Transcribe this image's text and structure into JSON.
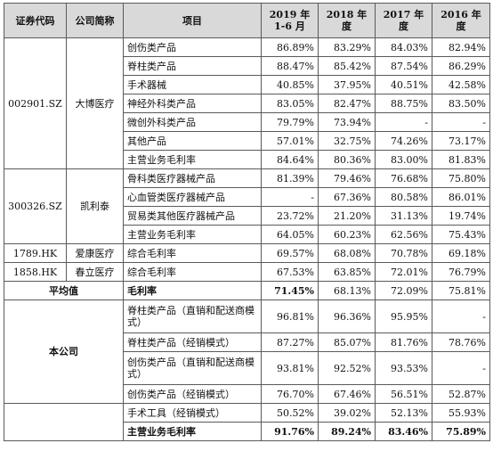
{
  "headers": [
    "证券代码",
    "公司简称",
    "项目",
    "2019 年\n1-6 月",
    "2018 年度",
    "2017 年度",
    "2016 年度"
  ],
  "companies": [
    {
      "code": "002901.SZ",
      "name": "大博医疗",
      "rows": [
        {
          "item": "创伤类产品",
          "values": [
            "86.89%",
            "83.29%",
            "84.03%",
            "82.94%"
          ]
        },
        {
          "item": "脊柱类产品",
          "values": [
            "88.47%",
            "85.42%",
            "87.54%",
            "86.29%"
          ]
        },
        {
          "item": "手术器械",
          "values": [
            "40.85%",
            "37.95%",
            "40.51%",
            "42.58%"
          ]
        },
        {
          "item": "神经外科类产品",
          "values": [
            "83.05%",
            "82.47%",
            "88.75%",
            "83.50%"
          ]
        },
        {
          "item": "微创外科类产品",
          "values": [
            "79.79%",
            "73.94%",
            "-",
            "-"
          ]
        },
        {
          "item": "其他产品",
          "values": [
            "57.01%",
            "32.75%",
            "74.26%",
            "73.17%"
          ]
        },
        {
          "item": "主营业务毛利率",
          "values": [
            "84.64%",
            "80.36%",
            "83.00%",
            "81.83%"
          ]
        }
      ]
    },
    {
      "code": "300326.SZ",
      "name": "凯利泰",
      "rows": [
        {
          "item": "骨科类医疗器械产品",
          "values": [
            "81.39%",
            "79.46%",
            "76.68%",
            "75.80%"
          ]
        },
        {
          "item": "心血管类医疗器械产品",
          "values": [
            "-",
            "67.36%",
            "80.58%",
            "86.01%"
          ]
        },
        {
          "item": "贸易类其他医疗器械产品",
          "values": [
            "23.72%",
            "21.20%",
            "31.13%",
            "19.74%"
          ]
        },
        {
          "item": "主营业务毛利率",
          "values": [
            "64.05%",
            "60.23%",
            "62.56%",
            "75.43%"
          ]
        }
      ]
    },
    {
      "code": "1789.HK",
      "name": "爱康医疗",
      "rows": [
        {
          "item": "综合毛利率",
          "values": [
            "69.57%",
            "68.08%",
            "70.78%",
            "69.18%"
          ]
        }
      ]
    },
    {
      "code": "1858.HK",
      "name": "春立医疗",
      "rows": [
        {
          "item": "综合毛利率",
          "values": [
            "67.53%",
            "63.85%",
            "72.01%",
            "76.79%"
          ]
        }
      ]
    }
  ],
  "average": {
    "label": "平均值",
    "item": "毛利率",
    "values": [
      "71.45%",
      "68.13%",
      "72.09%",
      "75.81%"
    ]
  },
  "company": {
    "label": "本公司",
    "rows": [
      {
        "item": "脊柱类产品（直销和配送商模式）",
        "values": [
          "96.81%",
          "96.36%",
          "95.95%",
          "-"
        ]
      },
      {
        "item": "脊柱类产品（经销模式）",
        "values": [
          "87.27%",
          "85.07%",
          "81.76%",
          "78.76%"
        ]
      },
      {
        "item": "创伤类产品（直销和配送商模式）",
        "values": [
          "93.81%",
          "92.52%",
          "93.53%",
          "-"
        ]
      },
      {
        "item": "创伤类产品（经销模式）",
        "values": [
          "76.70%",
          "67.46%",
          "56.51%",
          "52.87%"
        ]
      },
      {
        "item": "手术工具（经销模式）",
        "values": [
          "50.52%",
          "39.02%",
          "52.13%",
          "55.93%"
        ]
      },
      {
        "item": "主营业务毛利率",
        "values": [
          "91.76%",
          "89.24%",
          "83.46%",
          "75.89%"
        ]
      }
    ]
  }
}
